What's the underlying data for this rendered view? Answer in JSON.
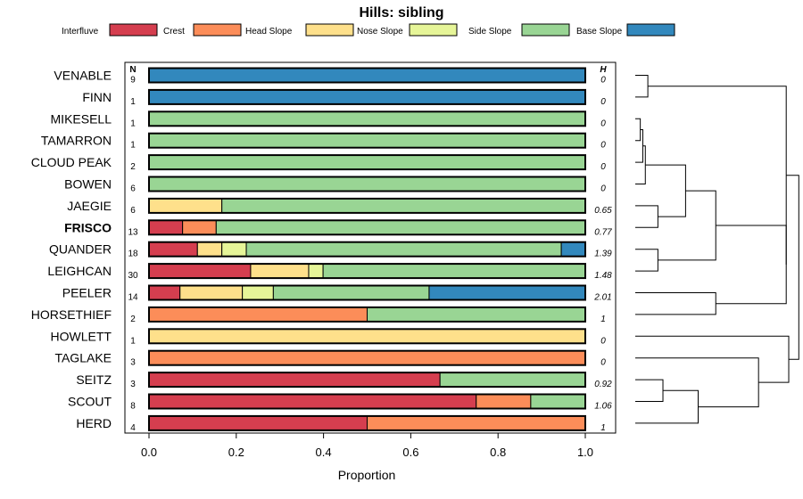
{
  "chart_data": {
    "type": "bar",
    "orientation": "horizontal",
    "stacked": true,
    "title": "Hills: sibling",
    "xlabel": "Proportion",
    "ylabel": "",
    "xlim": [
      0,
      1
    ],
    "xticks": [
      "0.0",
      "0.2",
      "0.4",
      "0.6",
      "0.8",
      "1.0"
    ],
    "n_header": "N",
    "h_header": "H",
    "legend_position": "top",
    "legend": [
      {
        "name": "Interfluve",
        "color": "#D53E4F"
      },
      {
        "name": "Crest",
        "color": "#FC8D59"
      },
      {
        "name": "Head Slope",
        "color": "#FEE08B"
      },
      {
        "name": "Nose Slope",
        "color": "#E6F598"
      },
      {
        "name": "Side Slope",
        "color": "#99D594"
      },
      {
        "name": "Base Slope",
        "color": "#3288BD"
      }
    ],
    "highlight": "FRISCO",
    "rows": [
      {
        "name": "VENABLE",
        "n": "9",
        "h": "0",
        "values": [
          0,
          0,
          0,
          0,
          0,
          1
        ]
      },
      {
        "name": "FINN",
        "n": "1",
        "h": "0",
        "values": [
          0,
          0,
          0,
          0,
          0,
          1
        ]
      },
      {
        "name": "MIKESELL",
        "n": "1",
        "h": "0",
        "values": [
          0,
          0,
          0,
          0,
          1,
          0
        ]
      },
      {
        "name": "TAMARRON",
        "n": "1",
        "h": "0",
        "values": [
          0,
          0,
          0,
          0,
          1,
          0
        ]
      },
      {
        "name": "CLOUD PEAK",
        "n": "2",
        "h": "0",
        "values": [
          0,
          0,
          0,
          0,
          1,
          0
        ]
      },
      {
        "name": "BOWEN",
        "n": "6",
        "h": "0",
        "values": [
          0,
          0,
          0,
          0,
          1,
          0
        ]
      },
      {
        "name": "JAEGIE",
        "n": "6",
        "h": "0.65",
        "values": [
          0,
          0,
          0.167,
          0,
          0.833,
          0
        ]
      },
      {
        "name": "FRISCO",
        "n": "13",
        "h": "0.77",
        "values": [
          0.077,
          0.077,
          0,
          0,
          0.846,
          0
        ]
      },
      {
        "name": "QUANDER",
        "n": "18",
        "h": "1.39",
        "values": [
          0.111,
          0,
          0.056,
          0.056,
          0.722,
          0.056
        ]
      },
      {
        "name": "LEIGHCAN",
        "n": "30",
        "h": "1.48",
        "values": [
          0.233,
          0,
          0.133,
          0.033,
          0.6,
          0
        ]
      },
      {
        "name": "PEELER",
        "n": "14",
        "h": "2.01",
        "values": [
          0.071,
          0,
          0.143,
          0.071,
          0.357,
          0.357
        ]
      },
      {
        "name": "HORSETHIEF",
        "n": "2",
        "h": "1",
        "values": [
          0,
          0.5,
          0,
          0,
          0.5,
          0
        ]
      },
      {
        "name": "HOWLETT",
        "n": "1",
        "h": "0",
        "values": [
          0,
          0,
          1,
          0,
          0,
          0
        ]
      },
      {
        "name": "TAGLAKE",
        "n": "3",
        "h": "0",
        "values": [
          0,
          1,
          0,
          0,
          0,
          0
        ]
      },
      {
        "name": "SEITZ",
        "n": "3",
        "h": "0.92",
        "values": [
          0.667,
          0,
          0,
          0,
          0.333,
          0
        ]
      },
      {
        "name": "SCOUT",
        "n": "8",
        "h": "1.06",
        "values": [
          0.75,
          0.125,
          0,
          0,
          0.125,
          0
        ]
      },
      {
        "name": "HERD",
        "n": "4",
        "h": "1",
        "values": [
          0.5,
          0.5,
          0,
          0,
          0,
          0
        ]
      }
    ],
    "dendrogram": {
      "merges": [
        {
          "a": "VENABLE",
          "b": "FINN",
          "height": 0.05
        },
        {
          "a": "MIKESELL",
          "b": "TAMARRON",
          "height": 0.02
        },
        {
          "a": "m2",
          "b": "CLOUD PEAK",
          "height": 0.03
        },
        {
          "a": "m3",
          "b": "BOWEN",
          "height": 0.04
        },
        {
          "a": "JAEGIE",
          "b": "FRISCO",
          "height": 0.09
        },
        {
          "a": "QUANDER",
          "b": "LEIGHCAN",
          "height": 0.09
        },
        {
          "a": "m4",
          "b": "m5",
          "height": 0.2
        },
        {
          "a": "m7",
          "b": "m6",
          "height": 0.32
        },
        {
          "a": "SEITZ",
          "b": "SCOUT",
          "height": 0.11
        },
        {
          "a": "m9",
          "b": "HERD",
          "height": 0.25
        },
        {
          "a": "PEELER",
          "b": "HORSETHIEF",
          "height": 0.32
        },
        {
          "a": "TAGLAKE",
          "b": "m10",
          "height": 0.49
        },
        {
          "a": "m8",
          "b": "m11",
          "height": 0.6
        },
        {
          "a": "m1",
          "b": "m13",
          "height": 0.6
        },
        {
          "a": "HOWLETT",
          "b": "m12",
          "height": 0.61
        },
        {
          "a": "m14",
          "b": "m15",
          "height": 0.65
        }
      ]
    }
  }
}
